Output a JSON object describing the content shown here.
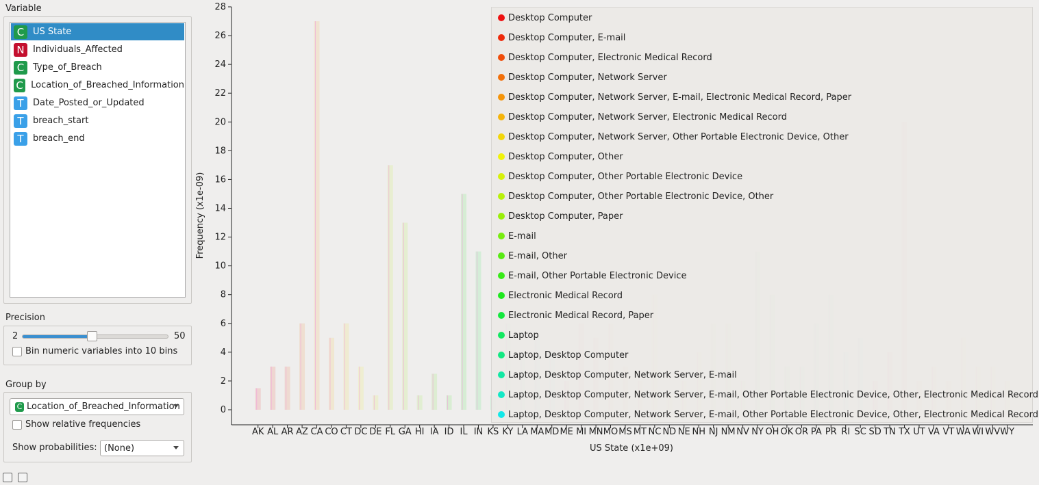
{
  "panel": {
    "variable_title": "Variable",
    "variables": [
      {
        "badge": "C",
        "color": "#1f9a4b",
        "name": "US State",
        "selected": true
      },
      {
        "badge": "N",
        "color": "#c4102f",
        "name": "Individuals_Affected",
        "selected": false
      },
      {
        "badge": "C",
        "color": "#1f9a4b",
        "name": "Type_of_Breach",
        "selected": false
      },
      {
        "badge": "C",
        "color": "#1f9a4b",
        "name": "Location_of_Breached_Information",
        "selected": false
      },
      {
        "badge": "T",
        "color": "#3aa0e8",
        "name": "Date_Posted_or_Updated",
        "selected": false
      },
      {
        "badge": "T",
        "color": "#3aa0e8",
        "name": "breach_start",
        "selected": false
      },
      {
        "badge": "T",
        "color": "#3aa0e8",
        "name": "breach_end",
        "selected": false
      }
    ],
    "precision_title": "Precision",
    "precision_min": "2",
    "precision_max": "50",
    "precision_fraction": 0.48,
    "bin_label": "Bin numeric variables into 10 bins",
    "group_title": "Group by",
    "group_badge": "C",
    "group_value": "Location_of_Breached_Information",
    "relfreq_label": "Show relative frequencies",
    "prob_label": "Show probabilities:",
    "prob_value": "(None)"
  },
  "chart_data": {
    "type": "bar",
    "xlabel": "US State (x1e+09)",
    "ylabel": "Frequency (x1e-09)",
    "ylim": [
      0,
      28
    ],
    "yticks": [
      0,
      2,
      4,
      6,
      8,
      10,
      12,
      14,
      16,
      18,
      20,
      22,
      24,
      26,
      28
    ],
    "categories": [
      "AK",
      "AL",
      "AR",
      "AZ",
      "CA",
      "CO",
      "CT",
      "DC",
      "DE",
      "FL",
      "GA",
      "HI",
      "IA",
      "ID",
      "IL",
      "IN",
      "KS",
      "KY",
      "LA",
      "MA",
      "MD",
      "ME",
      "MI",
      "MN",
      "MO",
      "MS",
      "MT",
      "NC",
      "ND",
      "NE",
      "NH",
      "NJ",
      "NM",
      "NV",
      "NY",
      "OH",
      "OK",
      "OR",
      "PA",
      "PR",
      "RI",
      "SC",
      "SD",
      "TN",
      "TX",
      "UT",
      "VA",
      "VT",
      "WA",
      "WI",
      "WV",
      "WY"
    ],
    "values": [
      1.5,
      3,
      3,
      6,
      27,
      5,
      6,
      3,
      1,
      17,
      13,
      1,
      2.5,
      1,
      15,
      11,
      1,
      6,
      4,
      5,
      4,
      2,
      6,
      5,
      6,
      3,
      2,
      8,
      1,
      2,
      4,
      6,
      6,
      2,
      11,
      8,
      3,
      3,
      6,
      8,
      4,
      5,
      2,
      4,
      20,
      2,
      3,
      2,
      5,
      3,
      3,
      2
    ],
    "legend": [
      {
        "name": "Desktop Computer",
        "color": "#ee1111"
      },
      {
        "name": "Desktop Computer, E-mail",
        "color": "#ee2a0a"
      },
      {
        "name": "Desktop Computer, Electronic Medical Record",
        "color": "#f04d0a"
      },
      {
        "name": "Desktop Computer, Network Server",
        "color": "#f2700a"
      },
      {
        "name": "Desktop Computer, Network Server, E-mail, Electronic Medical Record, Paper",
        "color": "#f5950a"
      },
      {
        "name": "Desktop Computer, Network Server, Electronic Medical Record",
        "color": "#f5b40a"
      },
      {
        "name": "Desktop Computer, Network Server, Other Portable Electronic Device, Other",
        "color": "#f2d60a"
      },
      {
        "name": "Desktop Computer, Other",
        "color": "#f0f20a"
      },
      {
        "name": "Desktop Computer, Other Portable Electronic Device",
        "color": "#d6f00a"
      },
      {
        "name": "Desktop Computer, Other Portable Electronic Device, Other",
        "color": "#b8f00a"
      },
      {
        "name": "Desktop Computer, Paper",
        "color": "#9aee0a"
      },
      {
        "name": "E-mail",
        "color": "#78ec10"
      },
      {
        "name": "E-mail, Other",
        "color": "#58ea14"
      },
      {
        "name": "E-mail, Other Portable Electronic Device",
        "color": "#38ea18"
      },
      {
        "name": "Electronic Medical Record",
        "color": "#1ee81e"
      },
      {
        "name": "Electronic Medical Record, Paper",
        "color": "#14e83e"
      },
      {
        "name": "Laptop",
        "color": "#12e860"
      },
      {
        "name": "Laptop, Desktop Computer",
        "color": "#12e882"
      },
      {
        "name": "Laptop, Desktop Computer, Network Server, E-mail",
        "color": "#12e8a4"
      },
      {
        "name": "Laptop, Desktop Computer, Network Server, E-mail, Other Portable Electronic Device, Other, Electronic Medical Record",
        "color": "#12e8c6"
      },
      {
        "name": "Laptop, Desktop Computer, Network Server, E-mail, Other Portable Electronic Device, Other, Electronic Medical Record, Paper",
        "color": "#12e8e8"
      }
    ]
  }
}
